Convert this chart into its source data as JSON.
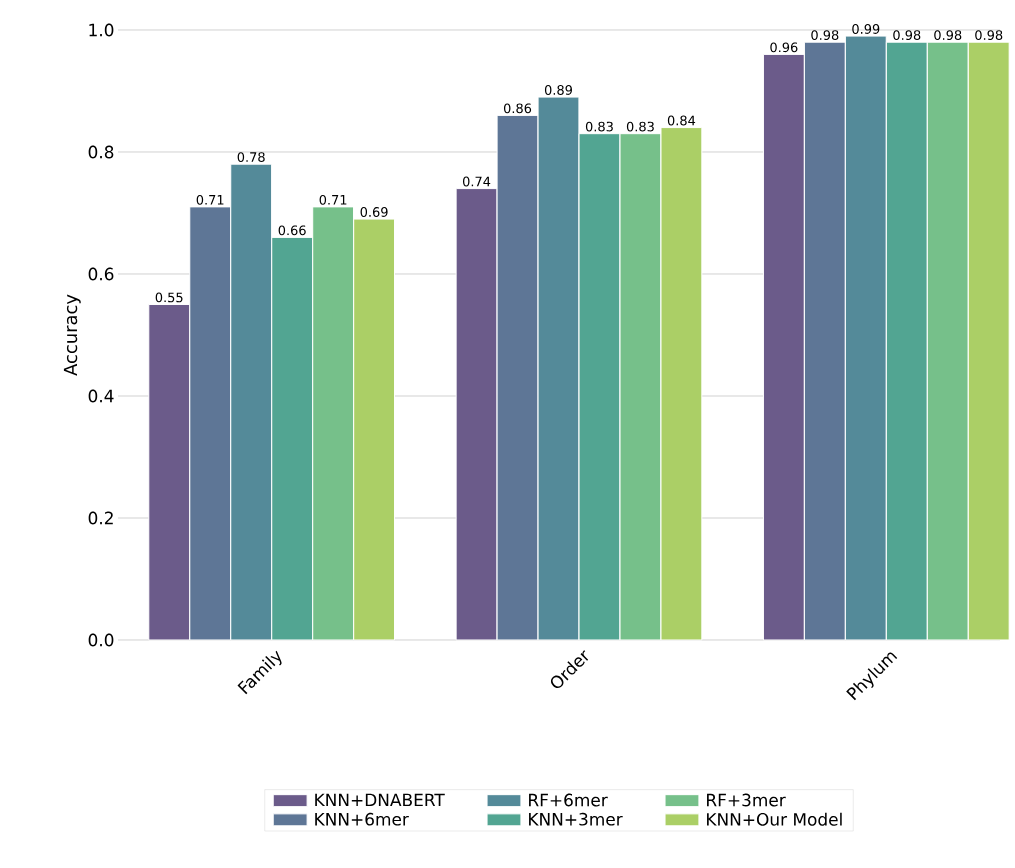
{
  "chart_data": {
    "type": "bar",
    "ylabel": "Accuracy",
    "categories": [
      "Family",
      "Order",
      "Phylum"
    ],
    "series": [
      {
        "name": "KNN+DNABERT",
        "color": "#6b5b8a",
        "values": [
          0.55,
          0.74,
          0.96
        ]
      },
      {
        "name": "KNN+6mer",
        "color": "#5e7696",
        "values": [
          0.71,
          0.86,
          0.98
        ]
      },
      {
        "name": "RF+6mer",
        "color": "#548a99",
        "values": [
          0.78,
          0.89,
          0.99
        ]
      },
      {
        "name": "KNN+3mer",
        "color": "#52a592",
        "values": [
          0.66,
          0.83,
          0.98
        ]
      },
      {
        "name": "RF+3mer",
        "color": "#76c08a",
        "values": [
          0.71,
          0.83,
          0.98
        ]
      },
      {
        "name": "KNN+Our Model",
        "color": "#abcf66",
        "values": [
          0.69,
          0.84,
          0.98
        ]
      }
    ],
    "ylim": [
      0,
      1.0
    ],
    "yticks": [
      {
        "value": 0,
        "label": "0.0"
      },
      0.2,
      0.4,
      0.6,
      0.8,
      {
        "value": 1.0,
        "label": "1.0"
      }
    ],
    "grid": "y",
    "legend": "bottom",
    "data_labels": true
  }
}
